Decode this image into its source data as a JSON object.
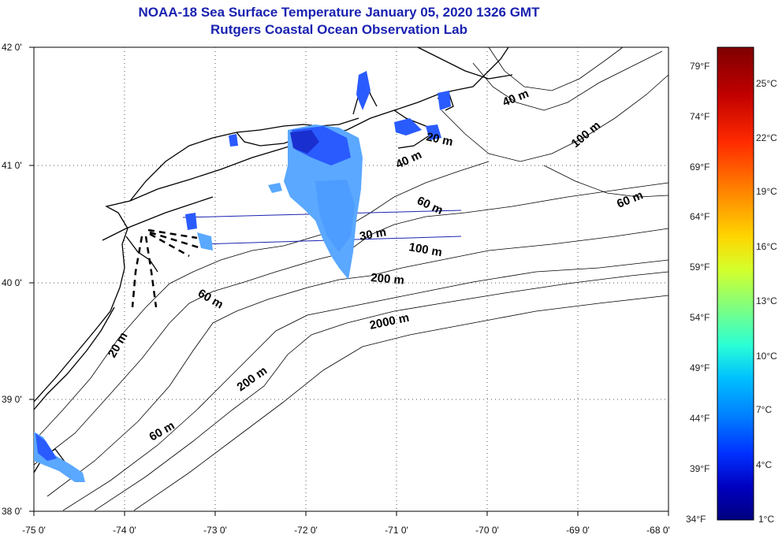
{
  "title": "NOAA-18 Sea Surface Temperature January 05, 2020 1326 GMT",
  "subtitle": "Rutgers Coastal Ocean Observation Lab",
  "x_ticks": [
    "-75 0'",
    "-74 0'",
    "-73 0'",
    "-72 0'",
    "-71 0'",
    "-70 0'",
    "-69 0'",
    "-68 0'"
  ],
  "y_ticks": [
    "42 0'",
    "41 0'",
    "40 0'",
    "39 0'",
    "38 0'"
  ],
  "colorbar": {
    "fahrenheit": [
      "79°F",
      "74°F",
      "69°F",
      "64°F",
      "59°F",
      "54°F",
      "49°F",
      "44°F",
      "39°F",
      "34°F"
    ],
    "celsius": [
      "25°C",
      "22°C",
      "19°C",
      "16°C",
      "13°C",
      "10°C",
      "7°C",
      "4°C",
      "1°C"
    ],
    "colors": [
      "#7f0000",
      "#c00000",
      "#ff2a00",
      "#ff7f00",
      "#ffd500",
      "#d5ff2a",
      "#7fff7f",
      "#2affd5",
      "#00d5ff",
      "#007fff",
      "#002aff",
      "#0000c0",
      "#00007f"
    ]
  },
  "contour_labels": [
    "40 m",
    "100 m",
    "20 m",
    "40 m",
    "60 m",
    "60 m",
    "30 m",
    "100 m",
    "200 m",
    "60 m",
    "2000 m",
    "20 m",
    "200 m",
    "60 m"
  ],
  "colors": {
    "title": "#1a22b0",
    "sst_blue": "#2a5bff",
    "sst_light": "#5aa8ff",
    "sst_dark": "#1a2fd0"
  }
}
